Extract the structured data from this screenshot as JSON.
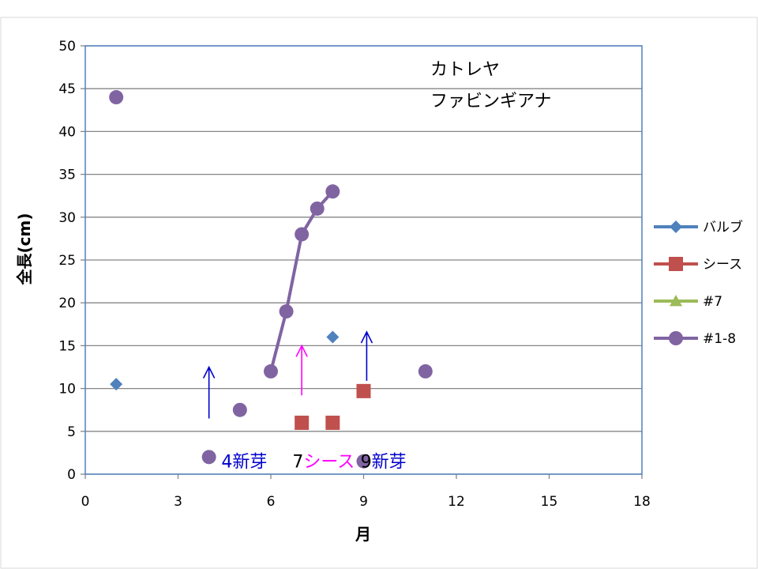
{
  "chart_data": {
    "type": "scatter",
    "title_lines": [
      "カトレヤ",
      "ファビンギアナ"
    ],
    "xlabel": "月",
    "ylabel": "全長(cm)",
    "xlim": [
      0,
      18
    ],
    "ylim": [
      0,
      50
    ],
    "xticks": [
      0,
      3,
      6,
      9,
      12,
      15,
      18
    ],
    "yticks": [
      0,
      5,
      10,
      15,
      20,
      25,
      30,
      35,
      40,
      45,
      50
    ],
    "grid": "horizontal",
    "legend_position": "right",
    "series": [
      {
        "name": "バルブ",
        "marker": "diamond",
        "color": "#4F81BD",
        "lines": [],
        "points": [
          [
            1,
            10.5
          ],
          [
            8,
            16
          ]
        ]
      },
      {
        "name": "シース",
        "marker": "square",
        "color": "#C0504D",
        "lines": [],
        "points": [
          [
            7,
            6
          ],
          [
            8,
            6
          ],
          [
            9,
            9.7
          ]
        ]
      },
      {
        "name": "#7",
        "marker": "triangle",
        "color": "#9BBB59",
        "lines": [],
        "points": []
      },
      {
        "name": "#1-8",
        "marker": "circle",
        "color": "#8064A2",
        "lines": [
          [
            [
              6,
              12
            ],
            [
              6.5,
              19
            ],
            [
              7,
              28
            ],
            [
              7.5,
              31
            ],
            [
              8,
              33
            ]
          ]
        ],
        "points": [
          [
            1,
            44
          ],
          [
            4,
            2
          ],
          [
            5,
            7.5
          ],
          [
            6,
            12
          ],
          [
            6.5,
            19
          ],
          [
            7,
            28
          ],
          [
            7.5,
            31
          ],
          [
            8,
            33
          ],
          [
            9,
            1.5
          ],
          [
            11,
            12
          ]
        ]
      }
    ],
    "annotations": [
      {
        "parts": [
          {
            "text": "4新芽",
            "color": "#0000CC"
          }
        ],
        "x": 4.4,
        "y": 1.5
      },
      {
        "parts": [
          {
            "text": "7",
            "color": "#000000"
          },
          {
            "text": "シース",
            "color": "#FF00FF"
          }
        ],
        "x": 6.7,
        "y": 1.5
      },
      {
        "parts": [
          {
            "text": "9",
            "color": "#000000"
          },
          {
            "text": "新芽",
            "color": "#0000CC"
          }
        ],
        "x": 8.9,
        "y": 1.5
      }
    ],
    "arrows": [
      {
        "x": 4,
        "y_from": 6.5,
        "y_to": 12.5,
        "color": "#0000CC"
      },
      {
        "x": 7,
        "y_from": 9.2,
        "y_to": 15,
        "color": "#FF00FF"
      },
      {
        "x": 9.1,
        "y_from": 10.9,
        "y_to": 16.6,
        "color": "#0000CC"
      }
    ]
  }
}
